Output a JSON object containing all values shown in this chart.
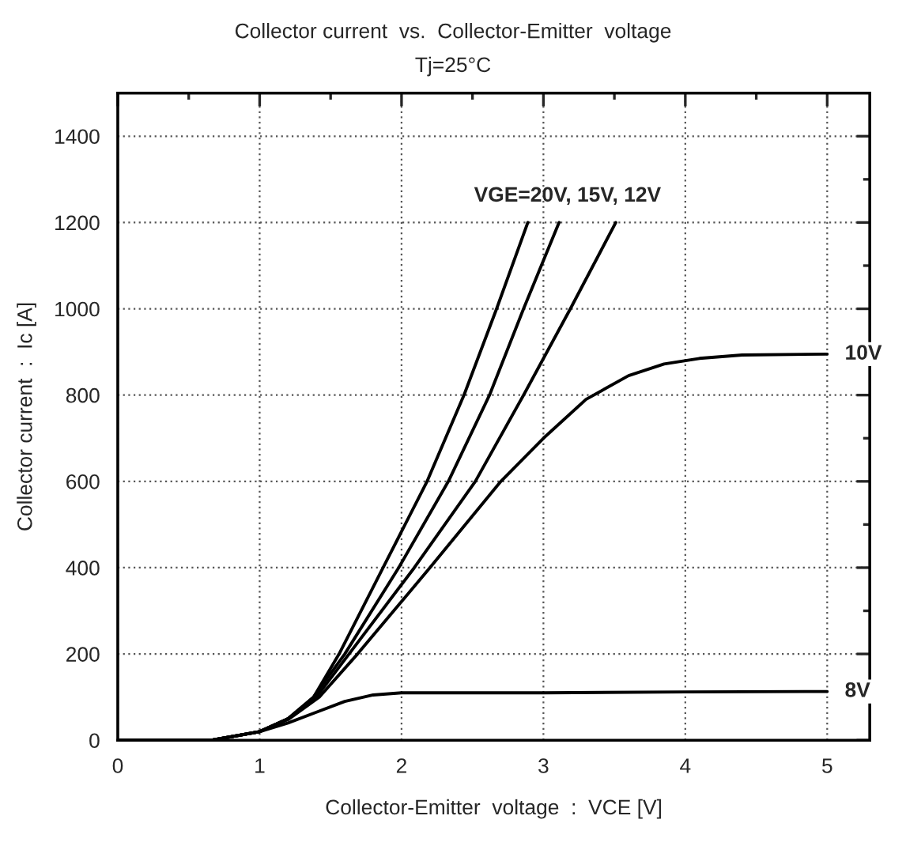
{
  "chart_data": {
    "type": "line",
    "title": "Collector current  vs.  Collector-Emitter  voltage",
    "subtitle": "Tj=25°C",
    "xlabel": "Collector-Emitter  voltage  :  VCE [V]",
    "ylabel": "Collector current  :  Ic [A]",
    "xlim": [
      0,
      5.3
    ],
    "ylim": [
      0,
      1500
    ],
    "xticks": [
      0,
      {
        "value": 0.5,
        "label": null
      },
      1,
      {
        "value": 1.5,
        "label": null
      },
      2,
      {
        "value": 2.5,
        "label": null
      },
      3,
      {
        "value": 3.5,
        "label": null
      },
      4,
      {
        "value": 4.5,
        "label": null
      },
      5
    ],
    "yticks": [
      0,
      {
        "value": 100,
        "label": null
      },
      200,
      {
        "value": 300,
        "label": null
      },
      400,
      {
        "value": 500,
        "label": null
      },
      600,
      {
        "value": 700,
        "label": null
      },
      800,
      {
        "value": 900,
        "label": null
      },
      1000,
      {
        "value": 1100,
        "label": null
      },
      1200,
      {
        "value": 1300,
        "label": null
      },
      1400
    ],
    "grid": true,
    "legend": false,
    "marker": "none",
    "line_style": "solid",
    "series": [
      {
        "color": "#000000",
        "x": [
          0,
          0.66,
          1.0,
          1.2,
          1.38,
          1.56,
          1.87,
          2.18,
          2.44,
          2.67,
          2.89
        ],
        "values": [
          0,
          0,
          20,
          50,
          100,
          200,
          400,
          600,
          800,
          1000,
          1200
        ]
      },
      {
        "color": "#000000",
        "x": [
          0,
          0.66,
          1.0,
          1.2,
          1.38,
          1.6,
          1.98,
          2.33,
          2.62,
          2.86,
          3.11
        ],
        "values": [
          0,
          0,
          20,
          50,
          100,
          200,
          400,
          600,
          800,
          1000,
          1200
        ]
      },
      {
        "color": "#000000",
        "x": [
          0,
          0.66,
          1.0,
          1.2,
          1.4,
          1.63,
          2.09,
          2.52,
          2.86,
          3.19,
          3.51
        ],
        "values": [
          0,
          0,
          20,
          50,
          100,
          200,
          400,
          600,
          800,
          1000,
          1200
        ]
      },
      {
        "color": "#000000",
        "x": [
          0,
          0.66,
          1.0,
          1.2,
          1.42,
          1.69,
          2.2,
          2.7,
          3.0,
          3.3,
          3.6,
          3.85,
          4.1,
          4.4,
          5.0
        ],
        "values": [
          0,
          0,
          20,
          48,
          100,
          200,
          400,
          600,
          700,
          790,
          845,
          872,
          885,
          893,
          895
        ]
      },
      {
        "color": "#000000",
        "x": [
          0,
          0.66,
          1.0,
          1.2,
          1.4,
          1.6,
          1.8,
          2.0,
          3.0,
          4.0,
          5.0
        ],
        "values": [
          0,
          0,
          20,
          40,
          65,
          90,
          105,
          110,
          110,
          112,
          113
        ]
      }
    ],
    "annotations": [
      "VGE=20V, 15V, 12V",
      {
        "text": "10V",
        "x": 5.0,
        "y": 895
      },
      {
        "text": "8V",
        "x": 5.0,
        "y": 113
      }
    ]
  }
}
